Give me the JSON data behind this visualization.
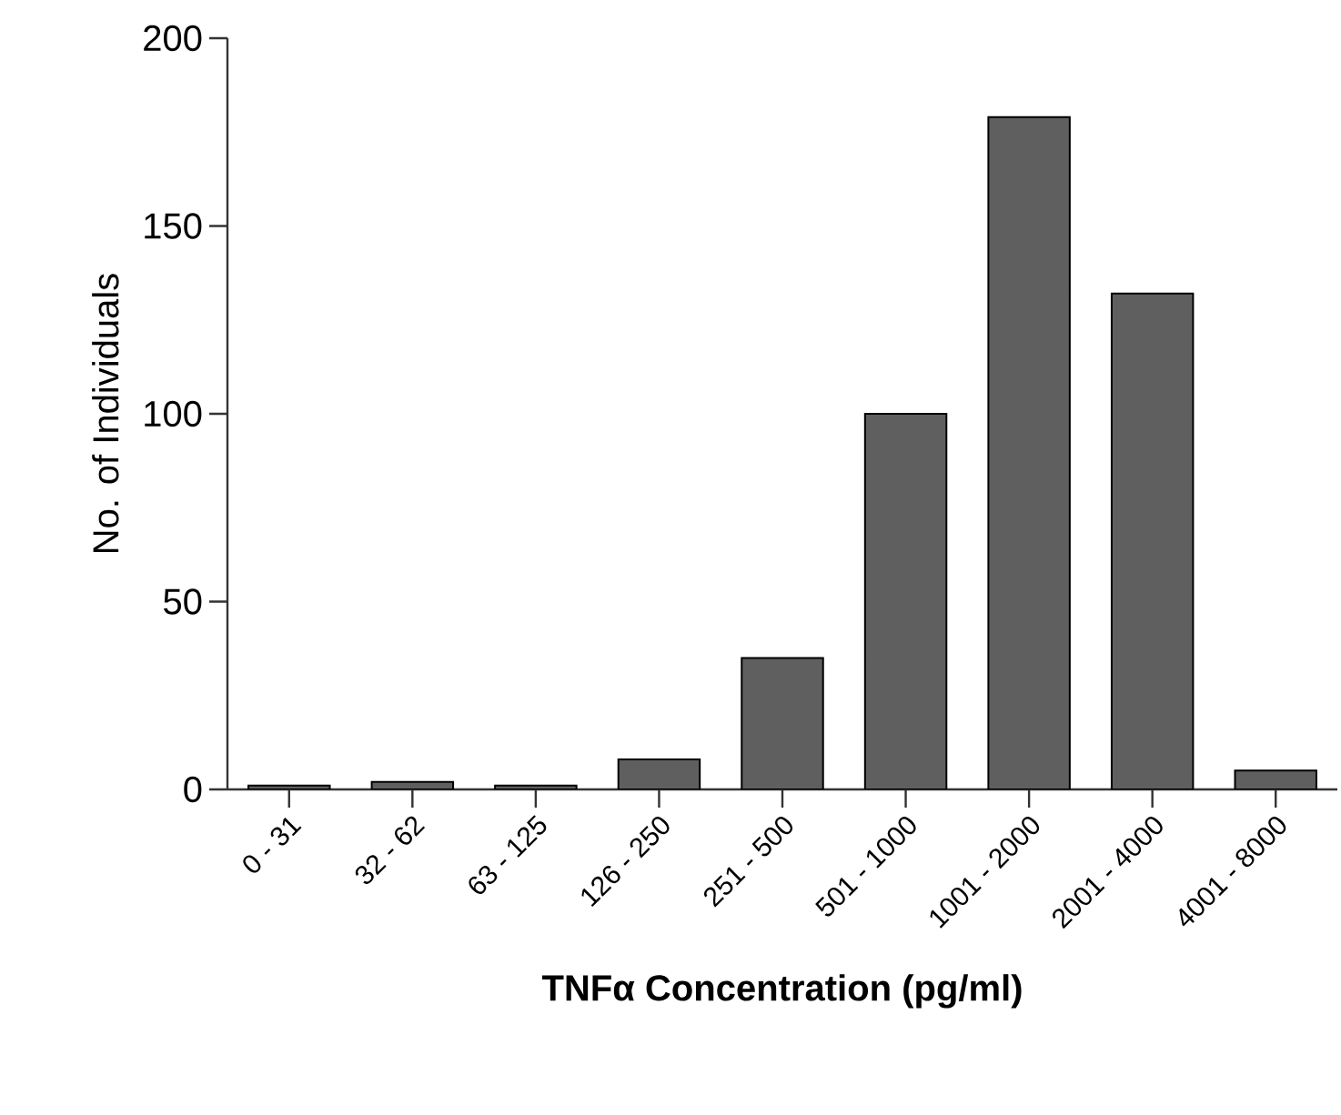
{
  "chart_data": {
    "type": "bar",
    "xlabel": "**TNFα Concentration (pg/ml)**",
    "ylabel": "No. of Individuals",
    "categories": [
      "0 - 31",
      "32 - 62",
      "63 - 125",
      "126 - 250",
      "251 - 500",
      "501 - 1000",
      "1001 - 2000",
      "2001 - 4000",
      "4001 - 8000"
    ],
    "values": [
      1,
      2,
      1,
      8,
      35,
      100,
      179,
      132,
      5
    ],
    "color": "#5f5f5f",
    "ylim": [
      0,
      200
    ],
    "yticks": [
      0,
      50,
      100,
      150,
      200
    ],
    "grid": false
  }
}
